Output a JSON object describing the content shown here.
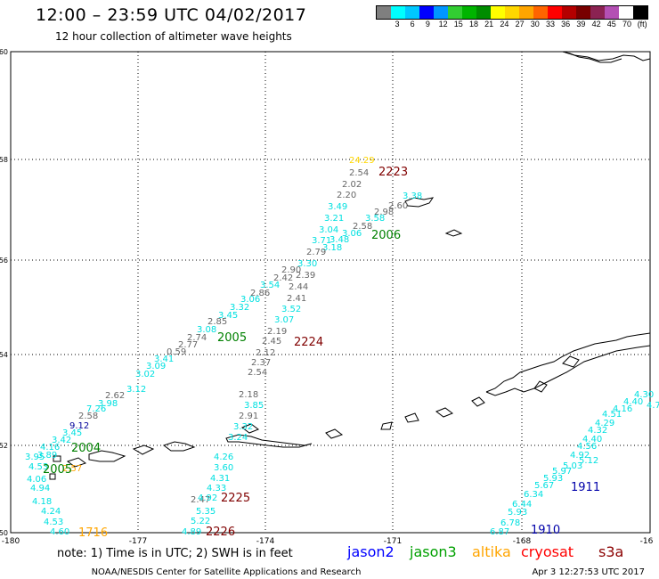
{
  "header": {
    "title": "12:00 – 23:59 UTC 04/02/2017",
    "subtitle": "12 hour collection of altimeter wave heights"
  },
  "colorbar": {
    "colors": [
      "#7f7f7f",
      "#00ffff",
      "#00c8ff",
      "#0000ff",
      "#0096ff",
      "#32cd32",
      "#00b400",
      "#008c00",
      "#ffff00",
      "#ffd700",
      "#ffa500",
      "#ff6400",
      "#ff0000",
      "#b40000",
      "#780000",
      "#8b2252",
      "#b450b4",
      "#ffffff",
      "#000000"
    ],
    "labels": [
      "3",
      "6",
      "9",
      "12",
      "15",
      "18",
      "21",
      "24",
      "27",
      "30",
      "33",
      "36",
      "39",
      "42",
      "45",
      "70",
      "(ft)"
    ]
  },
  "axes": {
    "lon_labels": [
      "-180",
      "-177",
      "-174",
      "-171",
      "-168",
      "-16"
    ],
    "lat_labels": [
      "60",
      "58",
      "56",
      "54",
      "52",
      "50"
    ]
  },
  "footer": {
    "note": "note:  1) Time is in UTC;  2) SWH is in feet",
    "credit": "NOAA/NESDIS Center for Satellite Applications and Research",
    "timestamp": "Apr  3 12:27:53 UTC 2017"
  },
  "legend": [
    {
      "name": "jason2",
      "color": "#0000ff"
    },
    {
      "name": "jason3",
      "color": "#00a000"
    },
    {
      "name": "altika",
      "color": "#ffa500"
    },
    {
      "name": "cryosat",
      "color": "#ff0000"
    },
    {
      "name": "s3a",
      "color": "#8b0000"
    }
  ],
  "passes": [
    {
      "label": "2223",
      "color": "#800000"
    },
    {
      "label": "2006",
      "color": "#008000"
    },
    {
      "label": "2005",
      "color": "#008000"
    },
    {
      "label": "2224",
      "color": "#800000"
    },
    {
      "label": "2004",
      "color": "#008000"
    },
    {
      "label": "2005",
      "color": "#008000"
    },
    {
      "label": "2225",
      "color": "#800000"
    },
    {
      "label": "2226",
      "color": "#800000"
    },
    {
      "label": "1716",
      "color": "#ffa500"
    },
    {
      "label": "1911",
      "color": "#0000aa"
    },
    {
      "label": "1910",
      "color": "#0000aa"
    }
  ],
  "swh_readings": [
    {
      "v": "24.29",
      "c": "#ffd700"
    },
    {
      "v": "2.54",
      "c": "#666666"
    },
    {
      "v": "2.02",
      "c": "#666666"
    },
    {
      "v": "2.20",
      "c": "#666666"
    },
    {
      "v": "3.38",
      "c": "#00e0e0"
    },
    {
      "v": "2.60",
      "c": "#666666"
    },
    {
      "v": "3.49",
      "c": "#00e0e0"
    },
    {
      "v": "2.98",
      "c": "#666666"
    },
    {
      "v": "3.21",
      "c": "#00e0e0"
    },
    {
      "v": "3.58",
      "c": "#00e0e0"
    },
    {
      "v": "2.58",
      "c": "#666666"
    },
    {
      "v": "3.04",
      "c": "#00e0e0"
    },
    {
      "v": "3.06",
      "c": "#00e0e0"
    },
    {
      "v": "3.71",
      "c": "#00e0e0"
    },
    {
      "v": "3.48",
      "c": "#00e0e0"
    },
    {
      "v": "3.18",
      "c": "#00e0e0"
    },
    {
      "v": "2.79",
      "c": "#666666"
    },
    {
      "v": "3.30",
      "c": "#00e0e0"
    },
    {
      "v": "2.90",
      "c": "#666666"
    },
    {
      "v": "2.42",
      "c": "#666666"
    },
    {
      "v": "2.39",
      "c": "#666666"
    },
    {
      "v": "3.54",
      "c": "#00e0e0"
    },
    {
      "v": "2.44",
      "c": "#666666"
    },
    {
      "v": "2.86",
      "c": "#666666"
    },
    {
      "v": "3.06",
      "c": "#00e0e0"
    },
    {
      "v": "2.41",
      "c": "#666666"
    },
    {
      "v": "3.32",
      "c": "#00e0e0"
    },
    {
      "v": "3.52",
      "c": "#00e0e0"
    },
    {
      "v": "3.45",
      "c": "#00e0e0"
    },
    {
      "v": "2.85",
      "c": "#666666"
    },
    {
      "v": "3.07",
      "c": "#00e0e0"
    },
    {
      "v": "3.08",
      "c": "#00e0e0"
    },
    {
      "v": "2.74",
      "c": "#666666"
    },
    {
      "v": "2.19",
      "c": "#666666"
    },
    {
      "v": "2.77",
      "c": "#666666"
    },
    {
      "v": "2.45",
      "c": "#666666"
    },
    {
      "v": "0.59",
      "c": "#666666"
    },
    {
      "v": "3.41",
      "c": "#00e0e0"
    },
    {
      "v": "2.12",
      "c": "#666666"
    },
    {
      "v": "3.09",
      "c": "#00e0e0"
    },
    {
      "v": "2.37",
      "c": "#666666"
    },
    {
      "v": "3.02",
      "c": "#00e0e0"
    },
    {
      "v": "2.54",
      "c": "#666666"
    },
    {
      "v": "3.12",
      "c": "#00e0e0"
    },
    {
      "v": "3.98",
      "c": "#00e0e0"
    },
    {
      "v": "2.62",
      "c": "#666666"
    },
    {
      "v": "2.18",
      "c": "#666666"
    },
    {
      "v": "7.26",
      "c": "#00e0e0"
    },
    {
      "v": "3.85",
      "c": "#00e0e0"
    },
    {
      "v": "2.58",
      "c": "#666666"
    },
    {
      "v": "2.91",
      "c": "#666666"
    },
    {
      "v": "9.12",
      "c": "#000099"
    },
    {
      "v": "3.32",
      "c": "#00e0e0"
    },
    {
      "v": "3.45",
      "c": "#00e0e0"
    },
    {
      "v": "3.24",
      "c": "#00e0e0"
    },
    {
      "v": "3.42",
      "c": "#00e0e0"
    },
    {
      "v": "4.16",
      "c": "#00e0e0"
    },
    {
      "v": "4.26",
      "c": "#00e0e0"
    },
    {
      "v": "3.89",
      "c": "#00e0e0"
    },
    {
      "v": "3.60",
      "c": "#00e0e0"
    },
    {
      "v": "3.95",
      "c": "#00e0e0"
    },
    {
      "v": "4.53",
      "c": "#00e0e0"
    },
    {
      "v": "2.57",
      "c": "#ffa500"
    },
    {
      "v": "4.31",
      "c": "#00e0e0"
    },
    {
      "v": "4.94",
      "c": "#00e0e0"
    },
    {
      "v": "4.33",
      "c": "#00e0e0"
    },
    {
      "v": "2.47",
      "c": "#666666"
    },
    {
      "v": "4.18",
      "c": "#00e0e0"
    },
    {
      "v": "4.92",
      "c": "#00e0e0"
    },
    {
      "v": "4.24",
      "c": "#00e0e0"
    },
    {
      "v": "5.35",
      "c": "#00e0e0"
    },
    {
      "v": "4.53",
      "c": "#00e0e0"
    },
    {
      "v": "5.22",
      "c": "#00e0e0"
    },
    {
      "v": "4.60",
      "c": "#00e0e0"
    },
    {
      "v": "4.89",
      "c": "#00e0e0"
    },
    {
      "v": "4.06",
      "c": "#00e0e0"
    },
    {
      "v": "6.87",
      "c": "#00e0e0"
    },
    {
      "v": "6.78",
      "c": "#00e0e0"
    },
    {
      "v": "5.93",
      "c": "#00e0e0"
    },
    {
      "v": "6.44",
      "c": "#00e0e0"
    },
    {
      "v": "6.34",
      "c": "#00e0e0"
    },
    {
      "v": "5.67",
      "c": "#00e0e0"
    },
    {
      "v": "5.93",
      "c": "#00e0e0"
    },
    {
      "v": "5.97",
      "c": "#00e0e0"
    },
    {
      "v": "5.03",
      "c": "#00e0e0"
    },
    {
      "v": "4.92",
      "c": "#00e0e0"
    },
    {
      "v": "4.56",
      "c": "#00e0e0"
    },
    {
      "v": "4.40",
      "c": "#00e0e0"
    },
    {
      "v": "4.32",
      "c": "#00e0e0"
    },
    {
      "v": "4.29",
      "c": "#00e0e0"
    },
    {
      "v": "4.51",
      "c": "#00e0e0"
    },
    {
      "v": "4.16",
      "c": "#00e0e0"
    },
    {
      "v": "4.40",
      "c": "#00e0e0"
    },
    {
      "v": "4.30",
      "c": "#00e0e0"
    },
    {
      "v": "4.7",
      "c": "#00e0e0"
    },
    {
      "v": "5.12",
      "c": "#00e0e0"
    }
  ]
}
